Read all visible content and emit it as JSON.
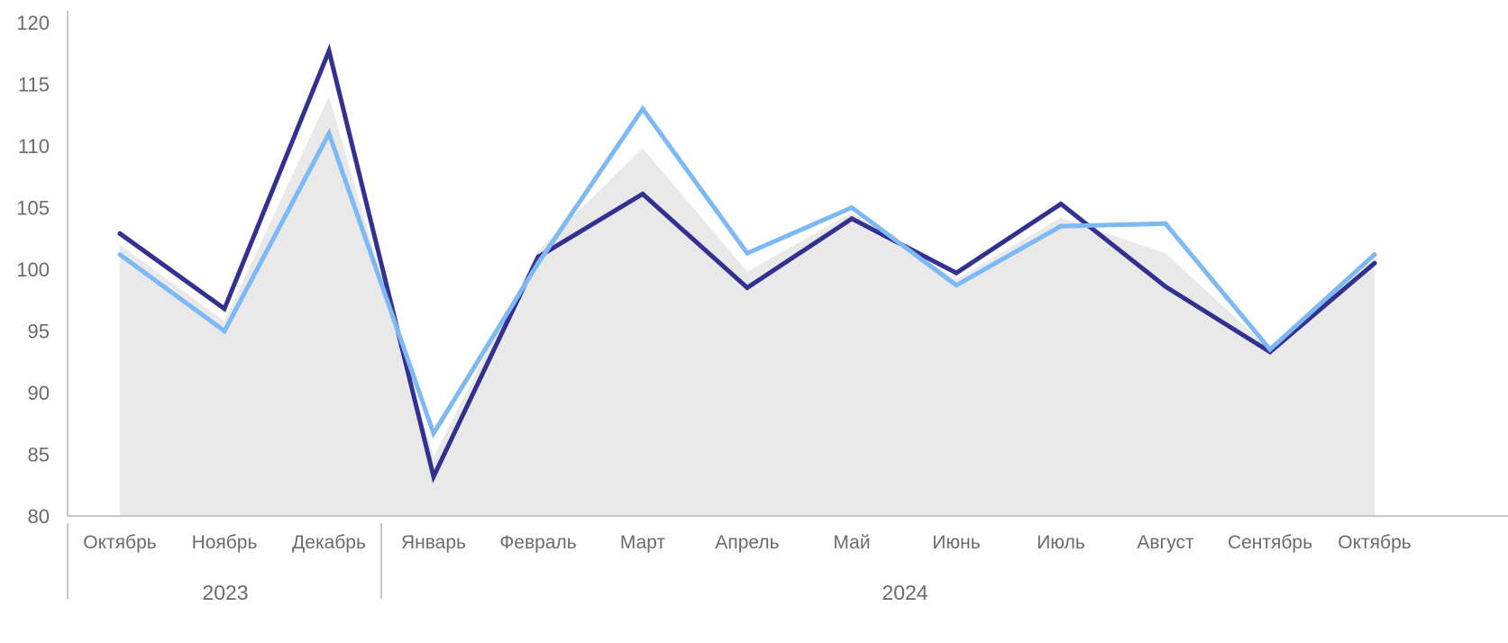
{
  "chart_data": {
    "type": "line",
    "categories": [
      "Октябрь",
      "Ноябрь",
      "Декабрь",
      "Январь",
      "Февраль",
      "Март",
      "Апрель",
      "Май",
      "Июнь",
      "Июль",
      "Август",
      "Сентябрь",
      "Октябрь"
    ],
    "year_groups": [
      {
        "label": "2023",
        "count": 3
      },
      {
        "label": "2024",
        "count": 10
      }
    ],
    "ylim": [
      80,
      120
    ],
    "yticks": [
      80,
      85,
      90,
      95,
      100,
      105,
      110,
      115,
      120
    ],
    "series": [
      {
        "kind": "area",
        "color": "#e9e9ea",
        "values": [
          102.0,
          95.8,
          114.0,
          84.8,
          101.5,
          109.8,
          99.8,
          104.6,
          99.2,
          104.2,
          101.3,
          93.5,
          100.8
        ]
      },
      {
        "kind": "line",
        "color": "#34308f",
        "values": [
          102.9,
          96.8,
          117.7,
          83.2,
          101.0,
          106.1,
          98.5,
          104.1,
          99.7,
          105.3,
          98.6,
          93.3,
          100.5
        ]
      },
      {
        "kind": "line",
        "color": "#7cb9f5",
        "values": [
          101.2,
          95.0,
          111.0,
          86.7,
          100.5,
          113.0,
          101.3,
          105.0,
          98.7,
          103.5,
          103.7,
          93.5,
          101.2
        ]
      }
    ],
    "grid": false,
    "legend": "none"
  }
}
